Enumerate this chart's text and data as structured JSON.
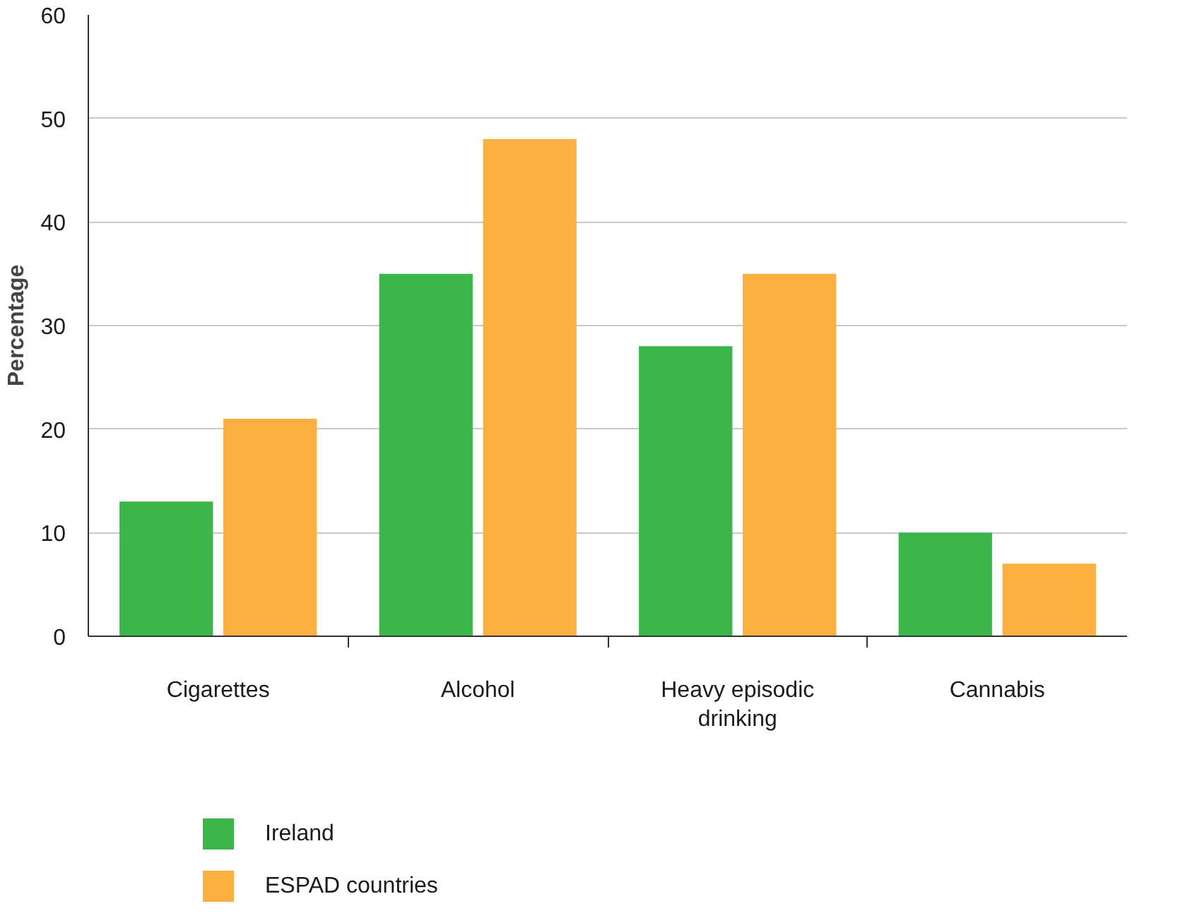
{
  "chart_data": {
    "type": "bar",
    "ylabel": "Percentage",
    "categories": [
      "Cigarettes",
      "Alcohol",
      "Heavy episodic drinking",
      "Cannabis"
    ],
    "series": [
      {
        "name": "Ireland",
        "color": "#3cb54a",
        "values": [
          13,
          35,
          28,
          10
        ]
      },
      {
        "name": "ESPAD countries",
        "color": "#fbb040",
        "values": [
          21,
          48,
          35,
          7
        ]
      }
    ],
    "ylim": [
      0,
      60
    ],
    "yticks": [
      0,
      10,
      20,
      30,
      40,
      50,
      60
    ],
    "grid": "y",
    "legend": "bottom left"
  }
}
